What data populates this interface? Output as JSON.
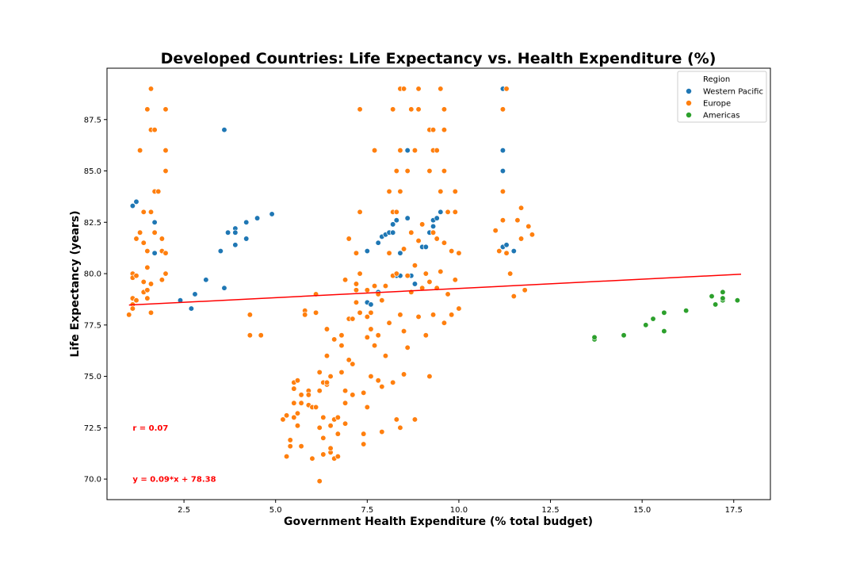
{
  "chart_data": {
    "type": "scatter",
    "title": "Developed Countries: Life Expectancy vs. Health Expenditure (%)",
    "xlabel": "Government Health Expenditure (% total budget)",
    "ylabel": "Life Expectancy (years)",
    "xlim": [
      0.4,
      18.5
    ],
    "ylim": [
      69.0,
      90.0
    ],
    "xticks": [
      2.5,
      5.0,
      7.5,
      10.0,
      12.5,
      15.0,
      17.5
    ],
    "xtick_labels": [
      "2.5",
      "5.0",
      "7.5",
      "10.0",
      "12.5",
      "15.0",
      "17.5"
    ],
    "yticks": [
      70.0,
      72.5,
      75.0,
      77.5,
      80.0,
      82.5,
      85.0,
      87.5
    ],
    "ytick_labels": [
      "70.0",
      "72.5",
      "75.0",
      "77.5",
      "80.0",
      "82.5",
      "85.0",
      "87.5"
    ],
    "legend": {
      "title": "Region",
      "position": "top-right"
    },
    "annotations": [
      {
        "text": "r = 0.07",
        "x": 1.1,
        "y": 72.5,
        "color": "#ff0000"
      },
      {
        "text": "y = 0.09*x + 78.38",
        "x": 1.1,
        "y": 70.0,
        "color": "#ff0000"
      }
    ],
    "regression": {
      "slope": 0.09,
      "intercept": 78.38,
      "x_range": [
        1.0,
        17.7
      ],
      "color": "#ff0000"
    },
    "series": [
      {
        "name": "Western Pacific",
        "color": "#1f77b4",
        "points": [
          [
            1.1,
            83.3
          ],
          [
            1.2,
            83.5
          ],
          [
            1.7,
            82.5
          ],
          [
            1.7,
            81.0
          ],
          [
            2.4,
            78.7
          ],
          [
            2.7,
            78.3
          ],
          [
            2.8,
            79.0
          ],
          [
            3.1,
            79.7
          ],
          [
            3.5,
            81.1
          ],
          [
            3.6,
            79.3
          ],
          [
            3.6,
            87.0
          ],
          [
            3.7,
            82.0
          ],
          [
            3.9,
            82.2
          ],
          [
            3.9,
            82.0
          ],
          [
            3.9,
            81.4
          ],
          [
            4.2,
            82.5
          ],
          [
            4.2,
            81.7
          ],
          [
            4.5,
            82.7
          ],
          [
            4.9,
            82.9
          ],
          [
            7.5,
            81.1
          ],
          [
            7.5,
            78.6
          ],
          [
            7.6,
            78.5
          ],
          [
            7.8,
            79.1
          ],
          [
            7.8,
            81.5
          ],
          [
            7.9,
            81.8
          ],
          [
            8.0,
            81.9
          ],
          [
            8.1,
            82.0
          ],
          [
            8.2,
            82.4
          ],
          [
            8.2,
            82.0
          ],
          [
            8.3,
            82.6
          ],
          [
            8.3,
            79.9
          ],
          [
            8.4,
            79.9
          ],
          [
            8.4,
            81.0
          ],
          [
            8.5,
            81.2
          ],
          [
            8.6,
            86.0
          ],
          [
            8.6,
            82.7
          ],
          [
            8.7,
            79.9
          ],
          [
            8.8,
            79.5
          ],
          [
            9.0,
            81.3
          ],
          [
            9.1,
            81.3
          ],
          [
            9.2,
            82.0
          ],
          [
            9.3,
            82.6
          ],
          [
            9.3,
            82.3
          ],
          [
            9.4,
            82.7
          ],
          [
            9.5,
            83.0
          ],
          [
            11.2,
            81.3
          ],
          [
            11.2,
            85.0
          ],
          [
            11.2,
            86.0
          ],
          [
            11.2,
            89.0
          ],
          [
            11.3,
            81.4
          ],
          [
            11.5,
            81.1
          ]
        ]
      },
      {
        "name": "Europe",
        "color": "#ff7f0e",
        "points": [
          [
            1.0,
            78.0
          ],
          [
            1.1,
            80.0
          ],
          [
            1.1,
            79.8
          ],
          [
            1.1,
            78.8
          ],
          [
            1.1,
            78.5
          ],
          [
            1.1,
            78.3
          ],
          [
            1.2,
            81.7
          ],
          [
            1.2,
            78.7
          ],
          [
            1.2,
            79.9
          ],
          [
            1.3,
            86.0
          ],
          [
            1.3,
            82.0
          ],
          [
            1.4,
            81.5
          ],
          [
            1.4,
            83.0
          ],
          [
            1.4,
            79.1
          ],
          [
            1.4,
            79.6
          ],
          [
            1.5,
            88.0
          ],
          [
            1.5,
            80.3
          ],
          [
            1.5,
            81.1
          ],
          [
            1.5,
            79.2
          ],
          [
            1.5,
            78.8
          ],
          [
            1.6,
            89.0
          ],
          [
            1.6,
            87.0
          ],
          [
            1.6,
            83.0
          ],
          [
            1.6,
            79.5
          ],
          [
            1.6,
            78.1
          ],
          [
            1.7,
            84.0
          ],
          [
            1.7,
            82.0
          ],
          [
            1.7,
            87.0
          ],
          [
            1.8,
            84.0
          ],
          [
            1.9,
            81.1
          ],
          [
            1.9,
            79.7
          ],
          [
            1.9,
            81.7
          ],
          [
            2.0,
            85.0
          ],
          [
            2.0,
            88.0
          ],
          [
            2.0,
            81.0
          ],
          [
            2.0,
            86.0
          ],
          [
            2.0,
            80.0
          ],
          [
            4.3,
            78.0
          ],
          [
            4.3,
            77.0
          ],
          [
            4.6,
            77.0
          ],
          [
            5.2,
            72.9
          ],
          [
            5.3,
            71.1
          ],
          [
            5.3,
            73.1
          ],
          [
            5.4,
            71.9
          ],
          [
            5.4,
            71.6
          ],
          [
            5.5,
            74.4
          ],
          [
            5.5,
            73.7
          ],
          [
            5.5,
            73.0
          ],
          [
            5.5,
            74.7
          ],
          [
            5.6,
            73.2
          ],
          [
            5.6,
            74.8
          ],
          [
            5.6,
            72.6
          ],
          [
            5.7,
            71.6
          ],
          [
            5.7,
            74.1
          ],
          [
            5.7,
            73.7
          ],
          [
            5.8,
            78.2
          ],
          [
            5.8,
            78.0
          ],
          [
            5.9,
            73.6
          ],
          [
            5.9,
            74.3
          ],
          [
            5.9,
            74.1
          ],
          [
            6.0,
            71.0
          ],
          [
            6.0,
            73.5
          ],
          [
            6.1,
            73.5
          ],
          [
            6.1,
            78.1
          ],
          [
            6.1,
            79.0
          ],
          [
            6.2,
            75.2
          ],
          [
            6.2,
            74.3
          ],
          [
            6.2,
            72.5
          ],
          [
            6.2,
            69.9
          ],
          [
            6.3,
            74.7
          ],
          [
            6.3,
            71.2
          ],
          [
            6.3,
            72.0
          ],
          [
            6.3,
            73.0
          ],
          [
            6.4,
            77.3
          ],
          [
            6.4,
            76.0
          ],
          [
            6.4,
            74.6
          ],
          [
            6.4,
            74.7
          ],
          [
            6.5,
            71.3
          ],
          [
            6.5,
            71.5
          ],
          [
            6.5,
            72.6
          ],
          [
            6.5,
            75.0
          ],
          [
            6.6,
            71.0
          ],
          [
            6.6,
            72.9
          ],
          [
            6.6,
            76.8
          ],
          [
            6.7,
            71.1
          ],
          [
            6.7,
            72.2
          ],
          [
            6.7,
            73.0
          ],
          [
            6.8,
            76.5
          ],
          [
            6.8,
            77.0
          ],
          [
            6.8,
            75.2
          ],
          [
            6.9,
            79.7
          ],
          [
            6.9,
            73.7
          ],
          [
            6.9,
            72.7
          ],
          [
            6.9,
            74.3
          ],
          [
            7.0,
            75.8
          ],
          [
            7.0,
            77.8
          ],
          [
            7.0,
            81.7
          ],
          [
            7.1,
            77.8
          ],
          [
            7.1,
            75.6
          ],
          [
            7.1,
            74.1
          ],
          [
            7.2,
            81.0
          ],
          [
            7.2,
            79.2
          ],
          [
            7.2,
            79.5
          ],
          [
            7.2,
            78.6
          ],
          [
            7.3,
            88.0
          ],
          [
            7.3,
            83.0
          ],
          [
            7.3,
            80.0
          ],
          [
            7.3,
            78.1
          ],
          [
            7.4,
            74.2
          ],
          [
            7.4,
            72.2
          ],
          [
            7.4,
            71.7
          ],
          [
            7.5,
            79.2
          ],
          [
            7.5,
            77.9
          ],
          [
            7.5,
            76.9
          ],
          [
            7.5,
            73.5
          ],
          [
            7.6,
            78.1
          ],
          [
            7.6,
            77.3
          ],
          [
            7.6,
            75.0
          ],
          [
            7.7,
            86.0
          ],
          [
            7.7,
            79.4
          ],
          [
            7.7,
            76.5
          ],
          [
            7.8,
            79.0
          ],
          [
            7.8,
            77.0
          ],
          [
            7.8,
            74.8
          ],
          [
            7.9,
            78.7
          ],
          [
            7.9,
            72.3
          ],
          [
            7.9,
            74.5
          ],
          [
            8.0,
            79.4
          ],
          [
            8.0,
            76.0
          ],
          [
            8.1,
            84.0
          ],
          [
            8.1,
            81.0
          ],
          [
            8.1,
            77.6
          ],
          [
            8.2,
            88.0
          ],
          [
            8.2,
            83.0
          ],
          [
            8.2,
            79.9
          ],
          [
            8.2,
            74.7
          ],
          [
            8.3,
            85.0
          ],
          [
            8.3,
            83.0
          ],
          [
            8.3,
            80.0
          ],
          [
            8.3,
            72.9
          ],
          [
            8.4,
            89.0
          ],
          [
            8.4,
            86.0
          ],
          [
            8.4,
            84.0
          ],
          [
            8.4,
            78.0
          ],
          [
            8.4,
            72.5
          ],
          [
            8.5,
            89.0
          ],
          [
            8.5,
            81.2
          ],
          [
            8.5,
            77.2
          ],
          [
            8.5,
            75.1
          ],
          [
            8.6,
            85.0
          ],
          [
            8.6,
            79.9
          ],
          [
            8.6,
            76.4
          ],
          [
            8.7,
            88.0
          ],
          [
            8.7,
            82.0
          ],
          [
            8.7,
            79.1
          ],
          [
            8.8,
            86.0
          ],
          [
            8.8,
            80.4
          ],
          [
            8.8,
            72.9
          ],
          [
            8.9,
            89.0
          ],
          [
            8.9,
            88.0
          ],
          [
            8.9,
            81.6
          ],
          [
            8.9,
            77.9
          ],
          [
            9.0,
            82.4
          ],
          [
            9.0,
            79.3
          ],
          [
            9.1,
            80.0
          ],
          [
            9.1,
            77.0
          ],
          [
            9.2,
            87.0
          ],
          [
            9.2,
            85.0
          ],
          [
            9.2,
            79.6
          ],
          [
            9.2,
            75.0
          ],
          [
            9.3,
            87.0
          ],
          [
            9.3,
            86.0
          ],
          [
            9.3,
            82.0
          ],
          [
            9.3,
            78.0
          ],
          [
            9.4,
            86.0
          ],
          [
            9.4,
            81.7
          ],
          [
            9.4,
            79.3
          ],
          [
            9.5,
            89.0
          ],
          [
            9.5,
            84.0
          ],
          [
            9.5,
            80.1
          ],
          [
            9.6,
            88.0
          ],
          [
            9.6,
            87.0
          ],
          [
            9.6,
            85.0
          ],
          [
            9.6,
            81.5
          ],
          [
            9.6,
            77.6
          ],
          [
            9.7,
            83.0
          ],
          [
            9.7,
            79.0
          ],
          [
            9.8,
            81.1
          ],
          [
            9.8,
            78.0
          ],
          [
            9.9,
            84.0
          ],
          [
            9.9,
            83.0
          ],
          [
            9.9,
            79.7
          ],
          [
            10.0,
            81.0
          ],
          [
            10.0,
            78.3
          ],
          [
            11.0,
            82.1
          ],
          [
            11.1,
            81.1
          ],
          [
            11.2,
            88.0
          ],
          [
            11.2,
            84.0
          ],
          [
            11.2,
            82.6
          ],
          [
            11.3,
            89.0
          ],
          [
            11.3,
            81.0
          ],
          [
            11.4,
            80.0
          ],
          [
            11.5,
            78.9
          ],
          [
            11.6,
            82.6
          ],
          [
            11.7,
            83.2
          ],
          [
            11.7,
            81.7
          ],
          [
            11.8,
            79.2
          ],
          [
            11.9,
            82.3
          ],
          [
            12.0,
            81.9
          ]
        ]
      },
      {
        "name": "Americas",
        "color": "#2ca02c",
        "points": [
          [
            13.7,
            76.8
          ],
          [
            13.7,
            76.9
          ],
          [
            14.5,
            77.0
          ],
          [
            15.1,
            77.5
          ],
          [
            15.3,
            77.8
          ],
          [
            15.6,
            78.1
          ],
          [
            15.6,
            77.2
          ],
          [
            16.2,
            78.2
          ],
          [
            16.9,
            78.9
          ],
          [
            17.0,
            78.5
          ],
          [
            17.2,
            79.1
          ],
          [
            17.2,
            78.7
          ],
          [
            17.2,
            78.8
          ],
          [
            17.6,
            78.7
          ]
        ]
      }
    ]
  }
}
